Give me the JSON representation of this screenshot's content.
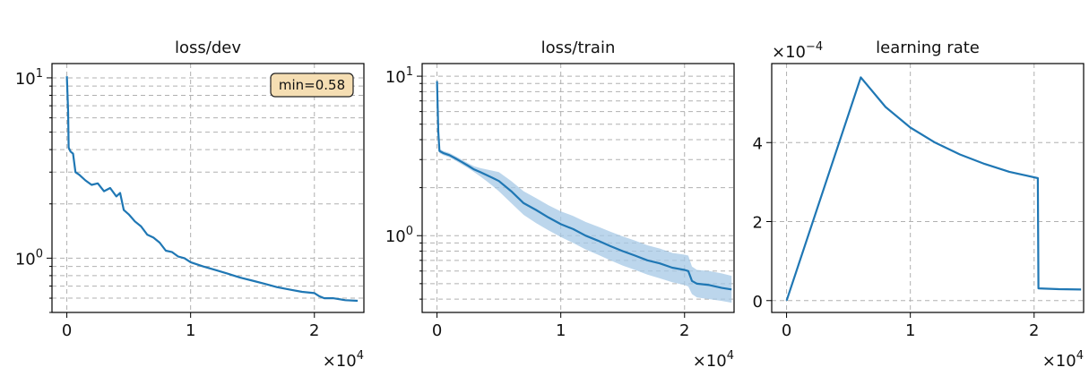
{
  "chart_data": [
    {
      "type": "line",
      "title": "loss/dev",
      "xlabel": "",
      "ylabel": "",
      "x_multiplier": "×10^4",
      "x_tick_labels": [
        "0",
        "1",
        "2"
      ],
      "y_tick_labels": [
        "10^0",
        "10^1"
      ],
      "yscale": "log",
      "xlim": [
        -1200,
        24000
      ],
      "ylim": [
        0.5,
        12
      ],
      "grid": true,
      "annotation": "min=0.58",
      "annotation_bg": "#f5deb3",
      "line_color": "#1f77b4",
      "series": [
        {
          "x": [
            0,
            100,
            150,
            300,
            500,
            700,
            1000,
            1500,
            2000,
            2500,
            3000,
            3500,
            4000,
            4300,
            4600,
            5000,
            5500,
            6000,
            6500,
            7000,
            7500,
            8000,
            8500,
            9000,
            9500,
            10000,
            11000,
            12000,
            13000,
            14000,
            15000,
            16000,
            17000,
            18000,
            19000,
            20000,
            20400,
            20800,
            21500,
            22500,
            23500
          ],
          "y": [
            10.2,
            6.5,
            4.1,
            3.9,
            3.8,
            3.0,
            2.9,
            2.7,
            2.55,
            2.6,
            2.35,
            2.45,
            2.2,
            2.3,
            1.85,
            1.75,
            1.6,
            1.5,
            1.35,
            1.3,
            1.22,
            1.1,
            1.08,
            1.02,
            1.0,
            0.95,
            0.9,
            0.86,
            0.82,
            0.78,
            0.75,
            0.72,
            0.69,
            0.67,
            0.65,
            0.64,
            0.615,
            0.6,
            0.6,
            0.585,
            0.58
          ]
        }
      ]
    },
    {
      "type": "line",
      "title": "loss/train",
      "xlabel": "",
      "ylabel": "",
      "x_multiplier": "×10^4",
      "x_tick_labels": [
        "0",
        "1",
        "2"
      ],
      "y_tick_labels": [
        "10^0",
        "10^1"
      ],
      "yscale": "log",
      "xlim": [
        -1200,
        24000
      ],
      "ylim": [
        0.33,
        12
      ],
      "grid": true,
      "line_color": "#1f77b4",
      "band_color": "#a6c8e6",
      "series": [
        {
          "x": [
            0,
            100,
            200,
            500,
            1000,
            1500,
            2000,
            2500,
            3000,
            3500,
            4000,
            4500,
            5000,
            6000,
            7000,
            8000,
            9000,
            10000,
            11000,
            12000,
            13000,
            14000,
            15000,
            16000,
            17000,
            18000,
            19000,
            20000,
            20300,
            20600,
            21000,
            22000,
            23000,
            23800
          ],
          "y": [
            9.3,
            4.5,
            3.4,
            3.3,
            3.2,
            3.05,
            2.9,
            2.75,
            2.6,
            2.5,
            2.4,
            2.3,
            2.2,
            1.9,
            1.6,
            1.45,
            1.3,
            1.18,
            1.1,
            1.0,
            0.93,
            0.86,
            0.8,
            0.75,
            0.7,
            0.67,
            0.63,
            0.61,
            0.6,
            0.52,
            0.5,
            0.49,
            0.47,
            0.46
          ],
          "band_low": [
            9.0,
            4.3,
            3.3,
            3.2,
            3.1,
            2.95,
            2.8,
            2.65,
            2.5,
            2.35,
            2.2,
            2.05,
            1.9,
            1.6,
            1.35,
            1.2,
            1.08,
            0.98,
            0.9,
            0.82,
            0.76,
            0.7,
            0.65,
            0.61,
            0.57,
            0.54,
            0.51,
            0.49,
            0.48,
            0.43,
            0.41,
            0.4,
            0.39,
            0.38
          ],
          "band_high": [
            9.6,
            4.7,
            3.5,
            3.4,
            3.3,
            3.15,
            3.0,
            2.85,
            2.72,
            2.65,
            2.6,
            2.55,
            2.5,
            2.2,
            1.9,
            1.72,
            1.55,
            1.42,
            1.33,
            1.22,
            1.14,
            1.06,
            0.99,
            0.93,
            0.87,
            0.83,
            0.78,
            0.76,
            0.75,
            0.64,
            0.61,
            0.6,
            0.58,
            0.56
          ]
        }
      ]
    },
    {
      "type": "line",
      "title": "learning rate",
      "xlabel": "",
      "ylabel": "",
      "x_multiplier": "×10^4",
      "y_multiplier": "×10^−4",
      "x_tick_labels": [
        "0",
        "1",
        "2"
      ],
      "y_tick_labels": [
        "0",
        "2",
        "4"
      ],
      "yscale": "linear",
      "xlim": [
        -1200,
        24000
      ],
      "ylim": [
        -0.3,
        6.0
      ],
      "grid": true,
      "line_color": "#1f77b4",
      "series": [
        {
          "x": [
            0,
            6000,
            8000,
            10000,
            12000,
            14000,
            16000,
            18000,
            20300,
            20350,
            22000,
            23800
          ],
          "y": [
            0,
            5.65,
            4.9,
            4.38,
            4.0,
            3.7,
            3.46,
            3.26,
            3.1,
            0.31,
            0.29,
            0.28
          ]
        }
      ]
    }
  ]
}
